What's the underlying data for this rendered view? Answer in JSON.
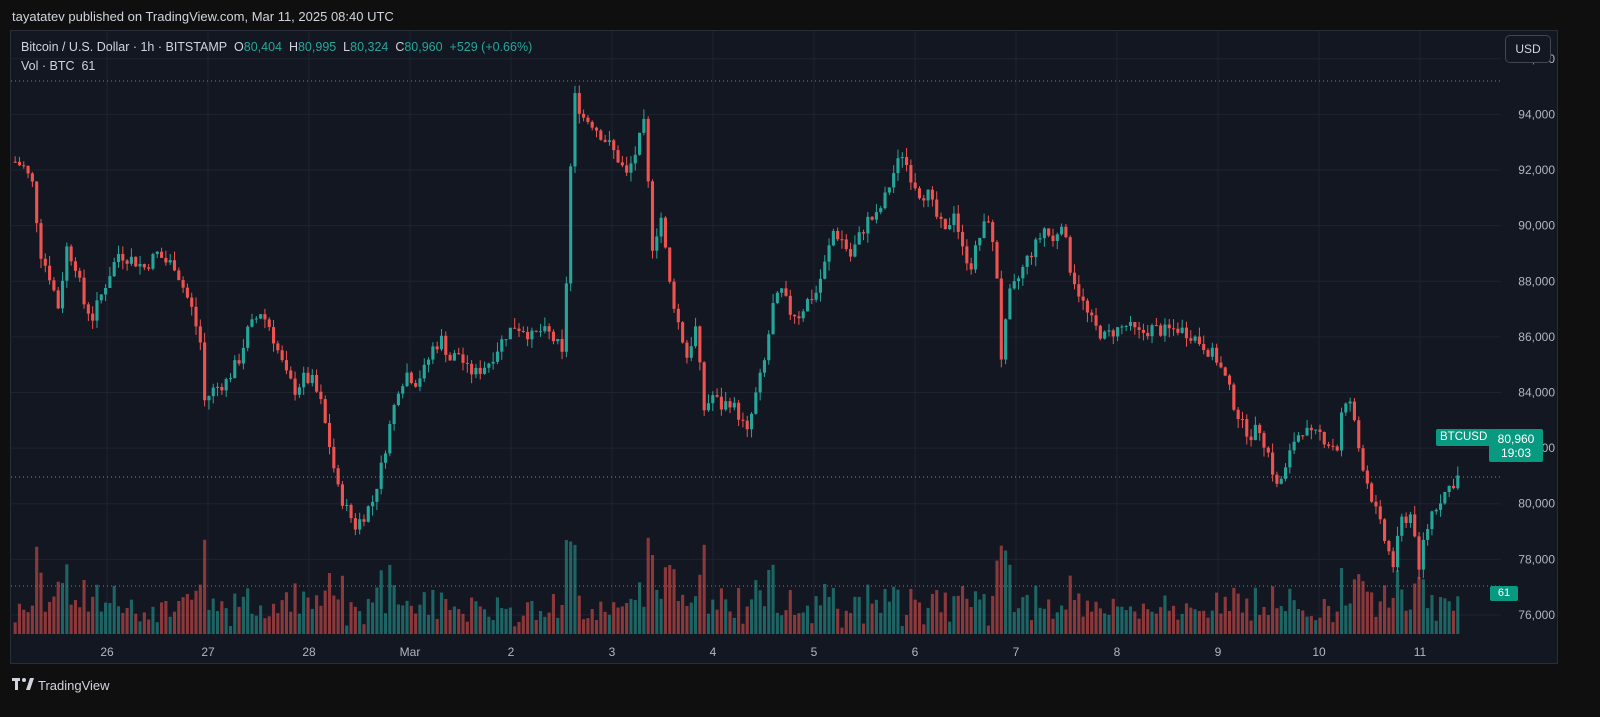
{
  "header": {
    "published": "tayatatev published on TradingView.com, Mar 11, 2025 08:40 UTC"
  },
  "legend": {
    "symbol": "Bitcoin / U.S. Dollar · 1h · BITSTAMP",
    "open_label": "O",
    "open": "80,404",
    "high_label": "H",
    "high": "80,995",
    "low_label": "L",
    "low": "80,324",
    "close_label": "C",
    "close": "80,960",
    "change": "+529 (+0.66%)",
    "vol_label": "Vol · BTC",
    "vol_value": "61"
  },
  "currency_button": "USD",
  "price_tag": {
    "symbol": "BTCUSD",
    "price": "80,960",
    "countdown": "19:03"
  },
  "volume_tag": "61",
  "footer": {
    "brand": "TradingView",
    "logo_icon": "tradingview-logo-icon"
  },
  "colors": {
    "up": "#26a69a",
    "down": "#ef5350",
    "background": "#131722",
    "grid": "#1e222d"
  },
  "chart_data": {
    "type": "candlestick",
    "symbol": "BTCUSD",
    "interval": "1h",
    "y_ticks": [
      76000,
      78000,
      80000,
      82000,
      84000,
      86000,
      88000,
      90000,
      92000,
      94000,
      96000
    ],
    "y_tick_labels": [
      "76,000",
      "78,000",
      "80,000",
      "82,000",
      "84,000",
      "86,000",
      "88,000",
      "90,000",
      "92,000",
      "94,000",
      "96,000"
    ],
    "ylim": [
      74200,
      97000
    ],
    "x_tick_labels": [
      "26",
      "27",
      "28",
      "Mar",
      "2",
      "3",
      "4",
      "5",
      "6",
      "7",
      "8",
      "9",
      "10",
      "11"
    ],
    "last_price": 80960,
    "reference_level": 95200,
    "close_path": [
      [
        0,
        92300
      ],
      [
        2,
        92100
      ],
      [
        4,
        91500
      ],
      [
        6,
        89000
      ],
      [
        8,
        88200
      ],
      [
        10,
        87100
      ],
      [
        12,
        89200
      ],
      [
        14,
        88600
      ],
      [
        16,
        87200
      ],
      [
        18,
        86700
      ],
      [
        20,
        87500
      ],
      [
        22,
        88300
      ],
      [
        24,
        89000
      ],
      [
        27,
        88800
      ],
      [
        30,
        88500
      ],
      [
        33,
        89000
      ],
      [
        35,
        88700
      ],
      [
        37,
        88600
      ],
      [
        39,
        87800
      ],
      [
        41,
        87000
      ],
      [
        43,
        85800
      ],
      [
        44,
        83700
      ],
      [
        46,
        84100
      ],
      [
        49,
        84400
      ],
      [
        52,
        85200
      ],
      [
        54,
        86200
      ],
      [
        57,
        86900
      ],
      [
        59,
        86400
      ],
      [
        61,
        85500
      ],
      [
        63,
        84600
      ],
      [
        65,
        84100
      ],
      [
        67,
        84500
      ],
      [
        69,
        84400
      ],
      [
        71,
        83600
      ],
      [
        73,
        82100
      ],
      [
        75,
        80500
      ],
      [
        77,
        79800
      ],
      [
        79,
        79200
      ],
      [
        81,
        79600
      ],
      [
        83,
        80100
      ],
      [
        85,
        81300
      ],
      [
        87,
        82800
      ],
      [
        89,
        84200
      ],
      [
        91,
        84700
      ],
      [
        93,
        84400
      ],
      [
        95,
        84800
      ],
      [
        97,
        85600
      ],
      [
        99,
        85900
      ],
      [
        101,
        85200
      ],
      [
        103,
        85400
      ],
      [
        105,
        84800
      ],
      [
        107,
        84700
      ],
      [
        110,
        85100
      ],
      [
        112,
        85600
      ],
      [
        114,
        86100
      ],
      [
        116,
        86400
      ],
      [
        118,
        86300
      ],
      [
        120,
        86000
      ],
      [
        122,
        86200
      ],
      [
        124,
        86100
      ],
      [
        126,
        85700
      ],
      [
        127,
        85300
      ],
      [
        128,
        88000
      ],
      [
        129,
        92100
      ],
      [
        130,
        94600
      ],
      [
        132,
        93900
      ],
      [
        134,
        93700
      ],
      [
        136,
        93300
      ],
      [
        138,
        92900
      ],
      [
        140,
        92400
      ],
      [
        142,
        91800
      ],
      [
        144,
        92600
      ],
      [
        146,
        93600
      ],
      [
        148,
        89300
      ],
      [
        150,
        90300
      ],
      [
        152,
        87900
      ],
      [
        154,
        86500
      ],
      [
        156,
        85300
      ],
      [
        158,
        86300
      ],
      [
        160,
        83400
      ],
      [
        162,
        83900
      ],
      [
        164,
        83500
      ],
      [
        166,
        83700
      ],
      [
        168,
        83200
      ],
      [
        170,
        82500
      ],
      [
        172,
        83900
      ],
      [
        174,
        85100
      ],
      [
        176,
        87100
      ],
      [
        178,
        87600
      ],
      [
        180,
        86900
      ],
      [
        182,
        86800
      ],
      [
        184,
        87300
      ],
      [
        186,
        87600
      ],
      [
        188,
        88600
      ],
      [
        190,
        89800
      ],
      [
        192,
        89500
      ],
      [
        194,
        88900
      ],
      [
        196,
        89600
      ],
      [
        198,
        90200
      ],
      [
        200,
        90300
      ],
      [
        202,
        91000
      ],
      [
        204,
        91900
      ],
      [
        206,
        92600
      ],
      [
        208,
        91800
      ],
      [
        210,
        91200
      ],
      [
        212,
        91100
      ],
      [
        214,
        90300
      ],
      [
        216,
        89700
      ],
      [
        218,
        90600
      ],
      [
        220,
        89100
      ],
      [
        222,
        88600
      ],
      [
        224,
        89600
      ],
      [
        226,
        90300
      ],
      [
        228,
        88200
      ],
      [
        229,
        85300
      ],
      [
        231,
        87500
      ],
      [
        233,
        88100
      ],
      [
        235,
        88800
      ],
      [
        237,
        89300
      ],
      [
        239,
        89900
      ],
      [
        241,
        89400
      ],
      [
        243,
        90200
      ],
      [
        245,
        88500
      ],
      [
        247,
        87600
      ],
      [
        249,
        86800
      ],
      [
        251,
        86300
      ],
      [
        253,
        86000
      ],
      [
        255,
        86200
      ],
      [
        258,
        86400
      ],
      [
        261,
        86100
      ],
      [
        264,
        86300
      ],
      [
        267,
        86200
      ],
      [
        270,
        86300
      ],
      [
        273,
        86100
      ],
      [
        276,
        85700
      ],
      [
        279,
        85200
      ],
      [
        281,
        84500
      ],
      [
        283,
        83600
      ],
      [
        285,
        82800
      ],
      [
        287,
        82500
      ],
      [
        289,
        82700
      ],
      [
        291,
        81800
      ],
      [
        293,
        80600
      ],
      [
        295,
        81200
      ],
      [
        297,
        82300
      ],
      [
        299,
        82700
      ],
      [
        301,
        82400
      ],
      [
        303,
        82500
      ],
      [
        305,
        82200
      ],
      [
        307,
        82000
      ],
      [
        308,
        83200
      ],
      [
        310,
        83700
      ],
      [
        312,
        82000
      ],
      [
        314,
        80800
      ],
      [
        316,
        79700
      ],
      [
        318,
        78700
      ],
      [
        320,
        77800
      ],
      [
        322,
        79400
      ],
      [
        324,
        79600
      ],
      [
        325,
        79000
      ],
      [
        326,
        77400
      ],
      [
        327,
        78600
      ],
      [
        329,
        79700
      ],
      [
        331,
        80200
      ],
      [
        333,
        80600
      ],
      [
        335,
        80960
      ]
    ]
  }
}
